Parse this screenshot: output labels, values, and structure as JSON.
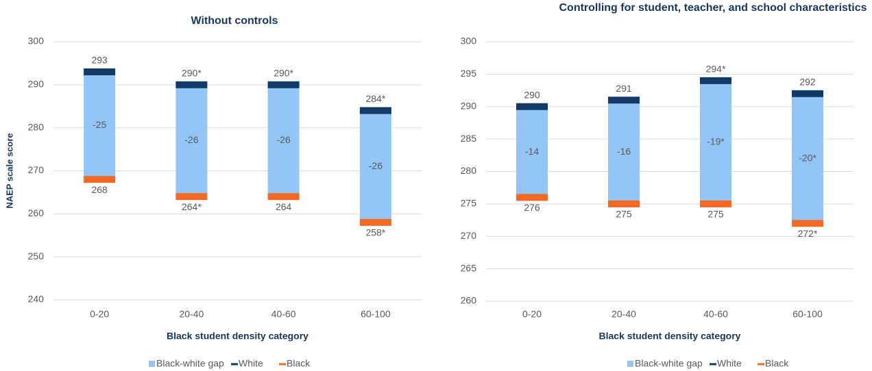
{
  "chart_data": [
    {
      "type": "floating-bar",
      "title": "Without controls",
      "y_label": "NAEP scale score",
      "x_label": "Black student density category",
      "categories": [
        "0-20",
        "20-40",
        "40-60",
        "60-100"
      ],
      "series": [
        {
          "name": "Black-white gap",
          "color": "#93c6f7",
          "values": [
            -25,
            -26,
            -26,
            -26
          ],
          "value_labels": [
            "-25",
            "-26",
            "-26",
            "-26"
          ]
        },
        {
          "name": "White",
          "color": "#123a66",
          "values": [
            293,
            290,
            290,
            284
          ],
          "value_labels": [
            "293",
            "290*",
            "290*",
            "284*"
          ]
        },
        {
          "name": "Black",
          "color": "#f46a25",
          "values": [
            268,
            264,
            264,
            258
          ],
          "value_labels": [
            "268",
            "264*",
            "264",
            "258*"
          ]
        }
      ],
      "ylim": [
        240,
        300
      ],
      "yticks": [
        240,
        250,
        260,
        270,
        280,
        290,
        300
      ],
      "grid": true
    },
    {
      "type": "floating-bar",
      "title": "Controlling for student, teacher, and school characteristics",
      "x_label": "Black student density category",
      "categories": [
        "0-20",
        "20-40",
        "40-60",
        "60-100"
      ],
      "series": [
        {
          "name": "Black-white gap",
          "color": "#93c6f7",
          "values": [
            -14,
            -16,
            -19,
            -20
          ],
          "value_labels": [
            "-14",
            "-16",
            "-19*",
            "-20*"
          ]
        },
        {
          "name": "White",
          "color": "#123a66",
          "values": [
            290,
            291,
            294,
            292
          ],
          "value_labels": [
            "290",
            "291",
            "294*",
            "292"
          ]
        },
        {
          "name": "Black",
          "color": "#f46a25",
          "values": [
            276,
            275,
            275,
            272
          ],
          "value_labels": [
            "276",
            "275",
            "275",
            "272*"
          ]
        }
      ],
      "ylim": [
        260,
        300
      ],
      "yticks": [
        260,
        265,
        270,
        275,
        280,
        285,
        290,
        295,
        300
      ],
      "grid": true
    }
  ]
}
